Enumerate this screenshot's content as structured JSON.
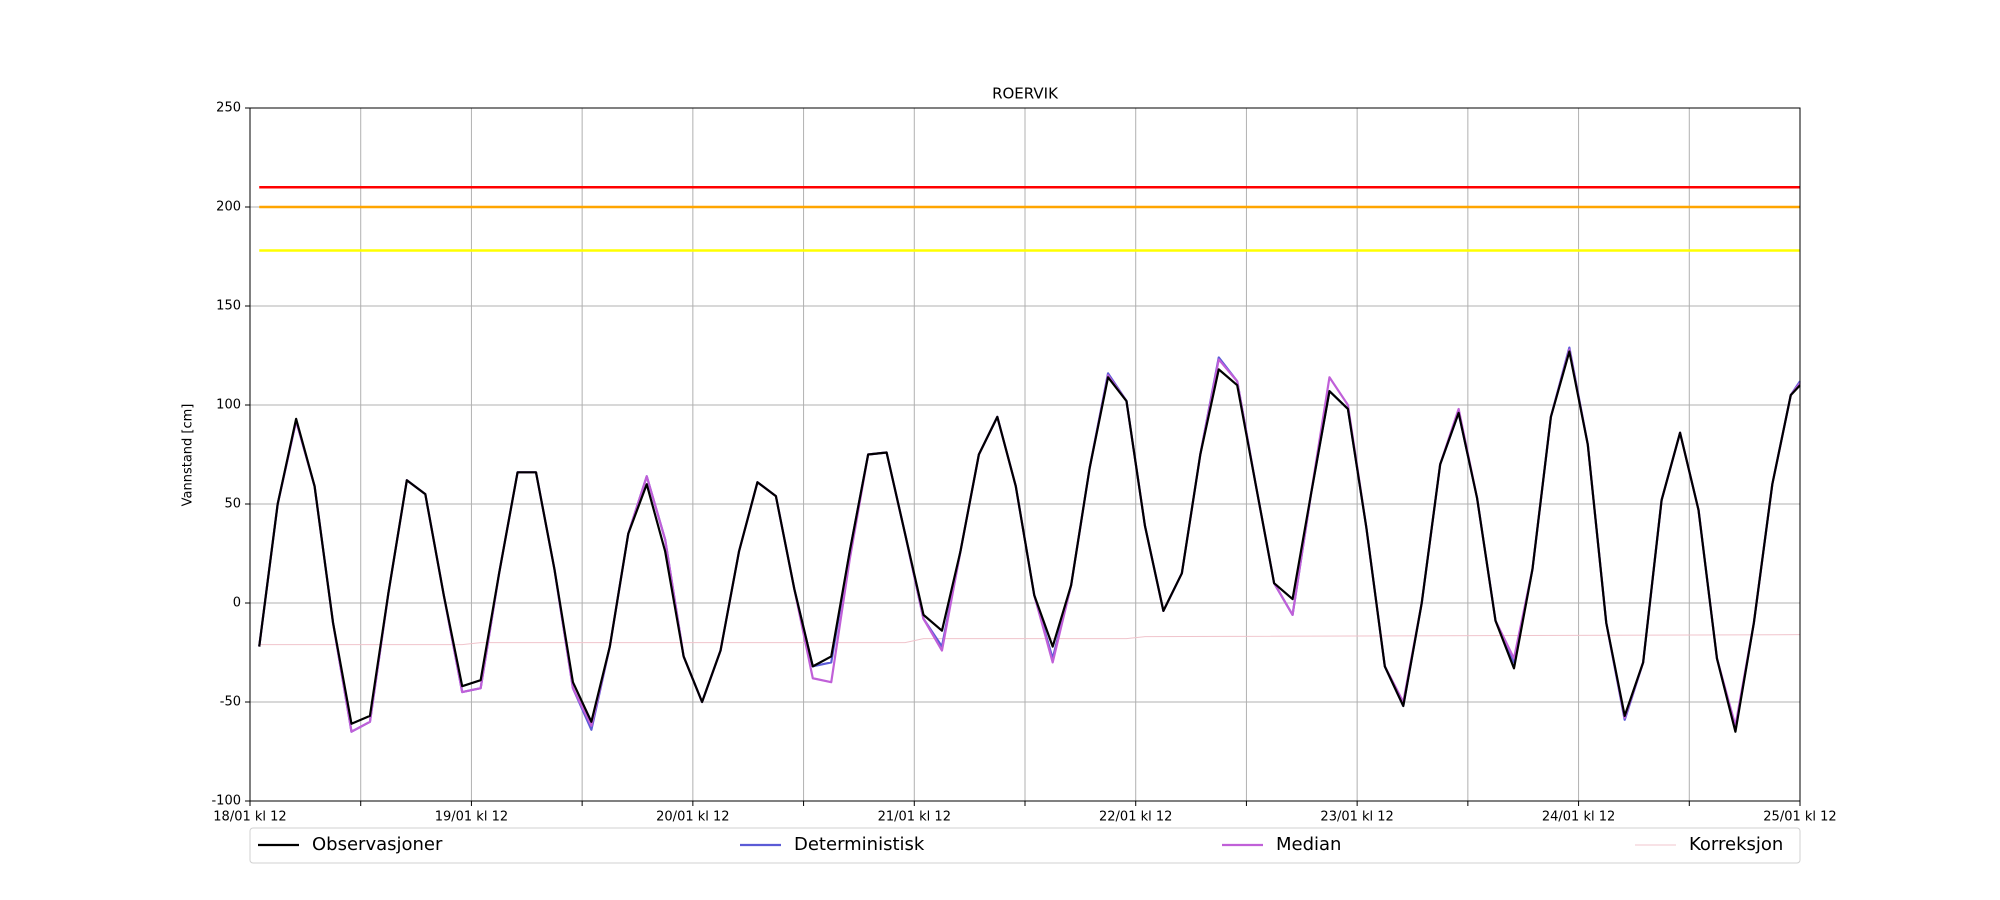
{
  "chart_data": {
    "type": "line",
    "title": "ROERVIK",
    "y_label": "Vannstand [cm]",
    "xlim": [
      0,
      168
    ],
    "ylim": [
      -100,
      250
    ],
    "yticks": [
      -100,
      -50,
      0,
      50,
      100,
      150,
      200,
      250
    ],
    "xticks": [
      {
        "value": 0,
        "label": "18/01 kl 12"
      },
      {
        "value": 24,
        "label": "19/01 kl 12"
      },
      {
        "value": 48,
        "label": "20/01 kl 12"
      },
      {
        "value": 72,
        "label": "21/01 kl 12"
      },
      {
        "value": 96,
        "label": "22/01 kl 12"
      },
      {
        "value": 120,
        "label": "23/01 kl 12"
      },
      {
        "value": 144,
        "label": "24/01 kl 12"
      },
      {
        "value": 168,
        "label": "25/01 kl 12"
      }
    ],
    "xminor_ticks": [
      12,
      36,
      60,
      84,
      108,
      132,
      156
    ],
    "grid": true,
    "hlines": [
      {
        "value": 210,
        "color": "#ff0000",
        "x": [
          1,
          168
        ]
      },
      {
        "value": 200,
        "color": "#ffa500",
        "x": [
          1,
          168
        ]
      },
      {
        "value": 178,
        "color": "#ffff00",
        "x": [
          1,
          168
        ]
      }
    ],
    "x": [
      1,
      3,
      5,
      7,
      9,
      11,
      13,
      15,
      17,
      19,
      21,
      23,
      25,
      27,
      29,
      31,
      33,
      35,
      37,
      39,
      41,
      43,
      45,
      47,
      49,
      51,
      53,
      55,
      57,
      59,
      61,
      63,
      65,
      67,
      69,
      71,
      73,
      75,
      77,
      79,
      81,
      83,
      85,
      87,
      89,
      91,
      93,
      95,
      97,
      99,
      101,
      103,
      105,
      107,
      109,
      111,
      113,
      115,
      117,
      119,
      121,
      123,
      125,
      127,
      129,
      131,
      133,
      135,
      137,
      139,
      141,
      143,
      145,
      147,
      149,
      151,
      153,
      155,
      157,
      159,
      161,
      163,
      165,
      167,
      168
    ],
    "series": [
      {
        "name": "Deterministisk",
        "color": "#5b5bd6",
        "values": [
          -22,
          50,
          92,
          59,
          -10,
          -65,
          -60,
          5,
          62,
          55,
          4,
          -45,
          -43,
          15,
          66,
          66,
          17,
          -43,
          -64,
          -22,
          35,
          64,
          32,
          -27,
          -50,
          -24,
          26,
          61,
          54,
          7,
          -32,
          -30,
          26,
          75,
          76,
          35,
          -8,
          -22,
          26,
          75,
          94,
          59,
          4,
          -28,
          9,
          68,
          116,
          102,
          39,
          -4,
          15,
          75,
          124,
          112,
          60,
          10,
          -6,
          55,
          107,
          98,
          38,
          -32,
          -52,
          0,
          70,
          96,
          53,
          -9,
          -30,
          17,
          94,
          129,
          80,
          -10,
          -59,
          -30,
          52,
          86,
          47,
          -28,
          -64,
          -10,
          60,
          105,
          112
        ]
      },
      {
        "name": "Median",
        "color": "#c060d8",
        "values": [
          -22,
          50,
          92,
          59,
          -10,
          -65,
          -60,
          5,
          62,
          55,
          4,
          -45,
          -43,
          15,
          66,
          66,
          17,
          -43,
          -62,
          -22,
          35,
          64,
          32,
          -27,
          -50,
          -24,
          26,
          61,
          54,
          7,
          -38,
          -40,
          22,
          75,
          76,
          35,
          -8,
          -24,
          26,
          75,
          94,
          59,
          4,
          -30,
          9,
          68,
          115,
          102,
          39,
          -4,
          15,
          75,
          123,
          112,
          60,
          10,
          -6,
          55,
          114,
          100,
          38,
          -32,
          -50,
          0,
          70,
          98,
          53,
          -9,
          -28,
          17,
          94,
          128,
          80,
          -10,
          -58,
          -30,
          52,
          86,
          47,
          -28,
          -62,
          -10,
          60,
          105,
          111
        ]
      },
      {
        "name": "Observasjoner",
        "color": "#000000",
        "values": [
          -22,
          50,
          93,
          59,
          -10,
          -61,
          -57,
          5,
          62,
          55,
          4,
          -42,
          -39,
          15,
          66,
          66,
          17,
          -40,
          -60,
          -22,
          35,
          60,
          26,
          -27,
          -50,
          -24,
          26,
          61,
          54,
          7,
          -32,
          -27,
          26,
          75,
          76,
          35,
          -6,
          -14,
          26,
          75,
          94,
          59,
          4,
          -22,
          9,
          68,
          114,
          102,
          39,
          -4,
          15,
          75,
          118,
          110,
          60,
          10,
          2,
          55,
          107,
          98,
          38,
          -32,
          -52,
          0,
          70,
          96,
          53,
          -9,
          -33,
          17,
          94,
          127,
          80,
          -10,
          -57,
          -30,
          52,
          86,
          47,
          -28,
          -65,
          -10,
          60,
          105,
          110
        ]
      },
      {
        "name": "Korreksjon",
        "color": "#f0c4cc",
        "x": [
          1,
          23,
          25,
          71,
          73,
          95,
          97,
          168
        ],
        "values": [
          -21,
          -21,
          -20,
          -20,
          -18,
          -18,
          -17,
          -16
        ]
      }
    ],
    "legend_order": [
      2,
      0,
      1,
      3
    ]
  }
}
